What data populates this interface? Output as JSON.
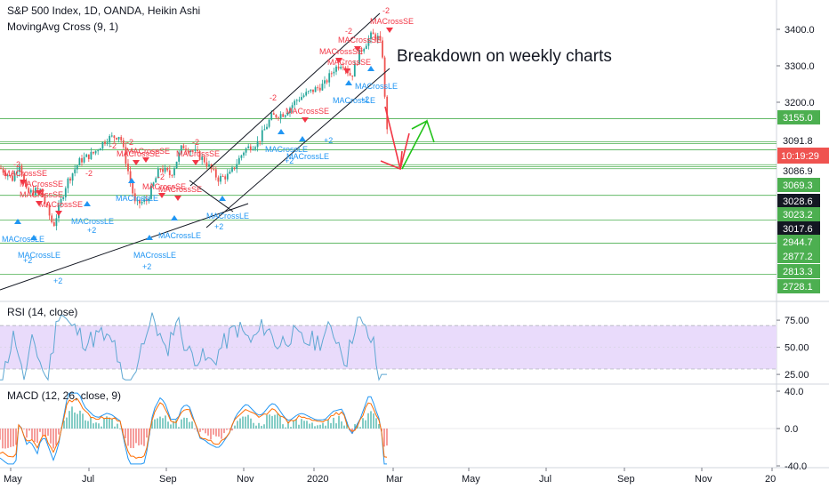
{
  "legend": {
    "title": "S&P 500 Index, 1D, OANDA, Heikin Ashi",
    "indicator": "MovingAvg Cross (9, 1)",
    "rsi": "RSI (14, close)",
    "macd": "MACD (12, 26, close, 9)"
  },
  "annotation": "Breakdown on weekly charts",
  "colors": {
    "up": "#26a69a",
    "down": "#ef5350",
    "level_line": "#4caf50",
    "rsi_line": "#5fa8d3",
    "rsi_band": "#e9dbfb",
    "macd_line": "#2196f3",
    "signal_line": "#ff6d00",
    "le_color": "#2196f3",
    "se_color": "#f23645",
    "arrow_up": "#22c31a",
    "arrow_down": "#f23645"
  },
  "chart_data": {
    "type": "candlestick",
    "price_axis_ticks": [
      2800,
      3000,
      3100,
      3200,
      3300,
      3400
    ],
    "price_axis_labels": [
      "3400.0",
      "3300.0",
      "3200.0"
    ],
    "price_levels": [
      "3155.0",
      "3091.8",
      "3086.9",
      "3069.3",
      "3028.6",
      "3023.2",
      "3017.6",
      "2944.7",
      "2877.2",
      "2813.3",
      "2728.1"
    ],
    "countdown": "10:19:29",
    "time_labels": [
      "May",
      "Jul",
      "Sep",
      "Nov",
      "2020",
      "Mar",
      "May",
      "Jul",
      "Sep",
      "Nov",
      "20"
    ],
    "rsi_axis_labels": [
      "75.00",
      "50.00",
      "25.00"
    ],
    "macd_axis_labels": [
      "40.0",
      "0.0",
      "-40.0"
    ],
    "signal_labels": {
      "long": "MACrossLE",
      "short": "MACrossSE",
      "long_count": "+2",
      "short_count": "-2"
    }
  }
}
